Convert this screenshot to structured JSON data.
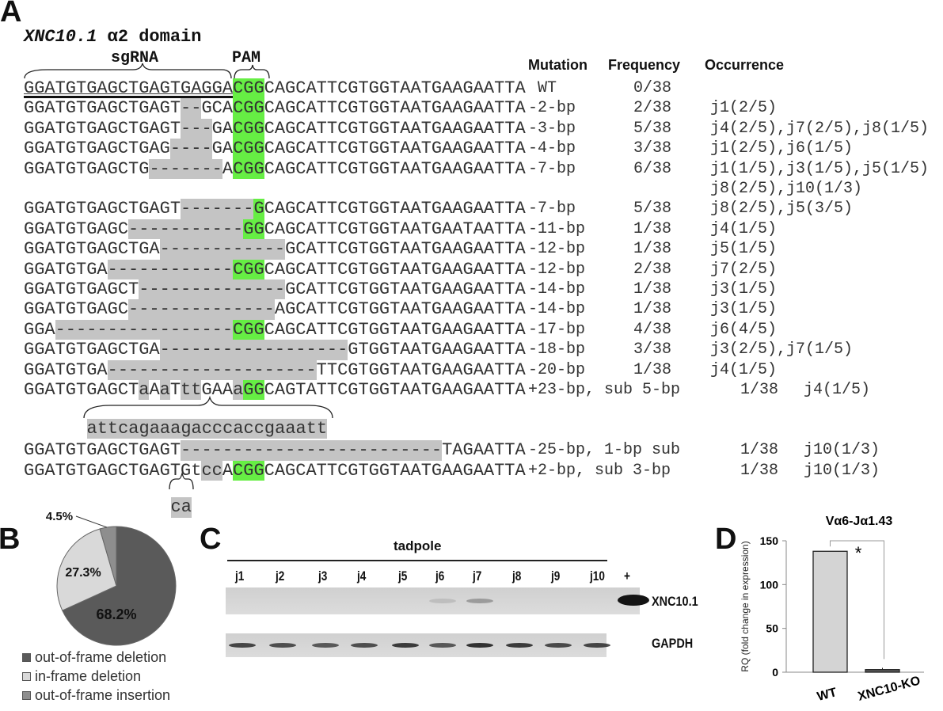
{
  "panel_a": {
    "letter": "A",
    "title_gene": "XNC10.1",
    "title_rest": " α2 domain",
    "sgrna_label": "sgRNA",
    "pam_label": "PAM",
    "headers": {
      "mutation": "Mutation",
      "frequency": "Frequency",
      "occurrence": "Occurrence"
    },
    "rows": [
      {
        "segments": [
          [
            "GGATGTGAGCTGAGTGAGGA",
            "u"
          ],
          [
            "CGG",
            "p"
          ],
          [
            "CAGCATTCGTGGTAATGAAGAATTA",
            "n"
          ]
        ],
        "mutation": " WT",
        "frequency": "0/38",
        "occurrence": ""
      },
      {
        "segments": [
          [
            "GGATGTGAGCTGAGT",
            "n"
          ],
          [
            "--",
            "g"
          ],
          [
            "GCA",
            "n"
          ],
          [
            "CGG",
            "p"
          ],
          [
            "CAGCATTCGTGGTAATGAAGAATTA",
            "n"
          ]
        ],
        "mutation": "-2-bp",
        "frequency": "2/38",
        "occurrence": "j1(2/5)"
      },
      {
        "segments": [
          [
            "GGATGTGAGCTGAGT",
            "n"
          ],
          [
            "---",
            "g"
          ],
          [
            "GA",
            "n"
          ],
          [
            "CGG",
            "p"
          ],
          [
            "CAGCATTCGTGGTAATGAAGAATTA",
            "n"
          ]
        ],
        "mutation": "-3-bp",
        "frequency": "5/38",
        "occurrence": "j4(2/5),j7(2/5),j8(1/5)"
      },
      {
        "segments": [
          [
            "GGATGTGAGCTGAG",
            "n"
          ],
          [
            "----",
            "g"
          ],
          [
            "GA",
            "n"
          ],
          [
            "CGG",
            "p"
          ],
          [
            "CAGCATTCGTGGTAATGAAGAATTA",
            "n"
          ]
        ],
        "mutation": "-4-bp",
        "frequency": "3/38",
        "occurrence": "j1(2/5),j6(1/5)"
      },
      {
        "segments": [
          [
            "GGATGTGAGCTG",
            "n"
          ],
          [
            "-------",
            "g"
          ],
          [
            "A",
            "n"
          ],
          [
            "CGG",
            "p"
          ],
          [
            "CAGCATTCGTGGTAATGAAGAATTA",
            "n"
          ]
        ],
        "mutation": "-7-bp",
        "frequency": "6/38",
        "occurrence": "j1(1/5),j3(1/5),j5(1/5)",
        "occurrence_cont": "j8(2/5),j10(1/3)"
      },
      {
        "segments": [
          [
            "GGATGTGAGCTGAGT",
            "n"
          ],
          [
            "-------",
            "g"
          ],
          [
            "G",
            "p"
          ],
          [
            "CAGCATTCGTGGTAATGAAGAATTA",
            "n"
          ]
        ],
        "mutation": "-7-bp",
        "frequency": "5/38",
        "occurrence": "j8(2/5),j5(3/5)"
      },
      {
        "segments": [
          [
            "GGATGTGAGC",
            "n"
          ],
          [
            "-----------",
            "g"
          ],
          [
            "GG",
            "p"
          ],
          [
            "CAGCATTCGTGGTAATGAATAATTA",
            "n"
          ]
        ],
        "mutation": "-11-bp",
        "frequency": "1/38",
        "occurrence": "j4(1/5)"
      },
      {
        "segments": [
          [
            "GGATGTGAGCTGA",
            "n"
          ],
          [
            "------------",
            "g"
          ],
          [
            "GCATTCGTGGTAATGAAGAATTA",
            "n"
          ]
        ],
        "mutation": "-12-bp",
        "frequency": "1/38",
        "occurrence": "j5(1/5)"
      },
      {
        "segments": [
          [
            "GGATGTGA",
            "n"
          ],
          [
            "------------",
            "g"
          ],
          [
            "CGG",
            "p"
          ],
          [
            "CAGCATTCGTGGTAATGAAGAATTA",
            "n"
          ]
        ],
        "mutation": "-12-bp",
        "frequency": "2/38",
        "occurrence": "j7(2/5)"
      },
      {
        "segments": [
          [
            "GGATGTGAGCT",
            "n"
          ],
          [
            "--------------",
            "g"
          ],
          [
            "GCATTCGTGGTAATGAAGAATTA",
            "n"
          ]
        ],
        "mutation": "-14-bp",
        "frequency": "1/38",
        "occurrence": "j3(1/5)"
      },
      {
        "segments": [
          [
            "GGATGTGAGC",
            "n"
          ],
          [
            "--------------",
            "g"
          ],
          [
            "AGCATTCGTGGTAATGAAGAATTA",
            "n"
          ]
        ],
        "mutation": "-14-bp",
        "frequency": "1/38",
        "occurrence": "j3(1/5)"
      },
      {
        "segments": [
          [
            "GGA",
            "n"
          ],
          [
            "-----------------",
            "g"
          ],
          [
            "CGG",
            "p"
          ],
          [
            "CAGCATTCGTGGTAATGAAGAATTA",
            "n"
          ]
        ],
        "mutation": "-17-bp",
        "frequency": "4/38",
        "occurrence": "j6(4/5)"
      },
      {
        "segments": [
          [
            "GGATGTGAGCTGA",
            "n"
          ],
          [
            "------------------",
            "g"
          ],
          [
            "GTGGTAATGAAGAATTA",
            "n"
          ]
        ],
        "mutation": "-18-bp",
        "frequency": "3/38",
        "occurrence": "j3(2/5),j7(1/5)"
      },
      {
        "segments": [
          [
            "GGATGTGA",
            "n"
          ],
          [
            "--------------------",
            "g"
          ],
          [
            "TTCGTGGTAATGAAGAATTA",
            "n"
          ]
        ],
        "mutation": "-20-bp",
        "frequency": "1/38",
        "occurrence": "j4(1/5)"
      },
      {
        "segments": [
          [
            "GGATGTGAGCT",
            "n"
          ],
          [
            "a",
            "g"
          ],
          [
            "A",
            "n"
          ],
          [
            "a",
            "g"
          ],
          [
            "T",
            "n"
          ],
          [
            "tt",
            "g"
          ],
          [
            "GAA",
            "n"
          ],
          [
            "a",
            "g"
          ],
          [
            "GG",
            "p"
          ],
          [
            "CAGTATTCGTGGTAATGAAGAATTA",
            "n"
          ]
        ],
        "mutation": "+23-bp, sub 5-bp",
        "frequency": "1/38",
        "occurrence": "j4(1/5)",
        "long": true
      },
      {
        "segments": [
          [
            "GGATGTGAGCTGAGT",
            "n"
          ],
          [
            "-------------------------",
            "g"
          ],
          [
            "TAGAATTA",
            "n"
          ]
        ],
        "mutation": "-25-bp, 1-bp sub",
        "frequency": "1/38",
        "occurrence": "j10(1/3)",
        "long": true
      },
      {
        "segments": [
          [
            "GGATGTGAGCTGAGTG",
            "n"
          ],
          [
            "t",
            "n"
          ],
          [
            "cc",
            "g"
          ],
          [
            "A",
            "n"
          ],
          [
            "CGG",
            "p"
          ],
          [
            "CAGCATTCGTGGTAATGAAGAATTA",
            "n"
          ]
        ],
        "mutation": "+2-bp, sub 3-bp",
        "frequency": "1/38",
        "occurrence": "j10(1/3)",
        "long": true
      }
    ],
    "insertion_23": "attcagaaagacccaccgaaatt",
    "insertion_2": "ca"
  },
  "panel_b": {
    "letter": "B",
    "chart_data": {
      "type": "pie",
      "slices": [
        {
          "label": "out-of-frame deletion",
          "value": 68.2,
          "display": "68.2%",
          "color": "#5a5a5a"
        },
        {
          "label": "in-frame deletion",
          "value": 27.3,
          "display": "27.3%",
          "color": "#d9d9d9"
        },
        {
          "label": "out-of-frame insertion",
          "value": 4.5,
          "display": "4.5%",
          "color": "#8e8e8e"
        }
      ],
      "legend": "bottom"
    }
  },
  "panel_c": {
    "letter": "C",
    "group_label": "tadpole",
    "lanes": [
      "j1",
      "j2",
      "j3",
      "j4",
      "j5",
      "j6",
      "j7",
      "j8",
      "j9",
      "j10",
      "+"
    ],
    "gels": [
      {
        "label": "XNC10.1",
        "band_intensity": [
          0,
          0,
          0,
          0,
          0,
          0.12,
          0.3,
          0,
          0,
          0,
          1
        ]
      },
      {
        "label": "GAPDH",
        "band_intensity": [
          0.75,
          0.7,
          0.65,
          0.7,
          0.8,
          0.65,
          0.85,
          0.8,
          0.72,
          0.75
        ]
      }
    ]
  },
  "panel_d": {
    "letter": "D",
    "chart_data": {
      "type": "bar",
      "title": "Vα6-Jα1.43",
      "ylabel": "RQ  (fold change in expression)",
      "categories": [
        "WT",
        "XNC10-KO"
      ],
      "values": [
        138,
        3
      ],
      "errors": [
        0,
        2
      ],
      "colors": [
        "#d4d4d4",
        "#5a5a5a"
      ],
      "ylim": [
        0,
        150
      ],
      "yticks": [
        0,
        50,
        100,
        150
      ],
      "significance": "*",
      "grid": false
    }
  }
}
